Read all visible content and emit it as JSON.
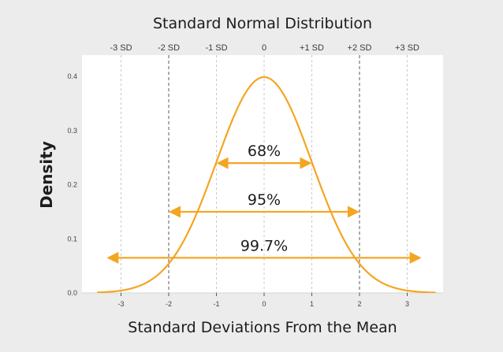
{
  "chart_data": {
    "type": "line",
    "title": "Standard Normal Distribution",
    "xlabel": "Standard Deviations From the Mean",
    "ylabel": "Density",
    "xlim": [
      -3.5,
      3.6
    ],
    "ylim": [
      0,
      0.42
    ],
    "x_ticks": [
      -3,
      -2,
      -1,
      0,
      1,
      2,
      3
    ],
    "x_tick_labels": [
      "-3",
      "-2",
      "-1",
      "0",
      "1",
      "2",
      "3"
    ],
    "y_ticks": [
      0.0,
      0.1,
      0.2,
      0.3,
      0.4
    ],
    "y_tick_labels": [
      "0.0",
      "0.1",
      "0.2",
      "0.3",
      "0.4"
    ],
    "sd_lines": [
      {
        "x": -3,
        "label": "-3 SD"
      },
      {
        "x": -2,
        "label": "-2 SD"
      },
      {
        "x": -1,
        "label": "-1 SD"
      },
      {
        "x": 0,
        "label": "0"
      },
      {
        "x": 1,
        "label": "+1 SD"
      },
      {
        "x": 2,
        "label": "+2 SD"
      },
      {
        "x": 3,
        "label": "+3 SD"
      }
    ],
    "series": [
      {
        "function": "normal_pdf",
        "mean": 0,
        "sd": 1
      }
    ],
    "ranges": [
      {
        "from": -1,
        "to": 1,
        "y": 0.24,
        "label": "68%"
      },
      {
        "from": -2,
        "to": 2,
        "y": 0.15,
        "label": "95%"
      },
      {
        "from": -3.3,
        "to": 3.3,
        "y": 0.065,
        "label": "99.7%"
      }
    ],
    "colors": {
      "curve": "#f4a522",
      "arrows": "#f4a522",
      "plot_background": "#ffffff",
      "page_background": "#ececec"
    }
  }
}
